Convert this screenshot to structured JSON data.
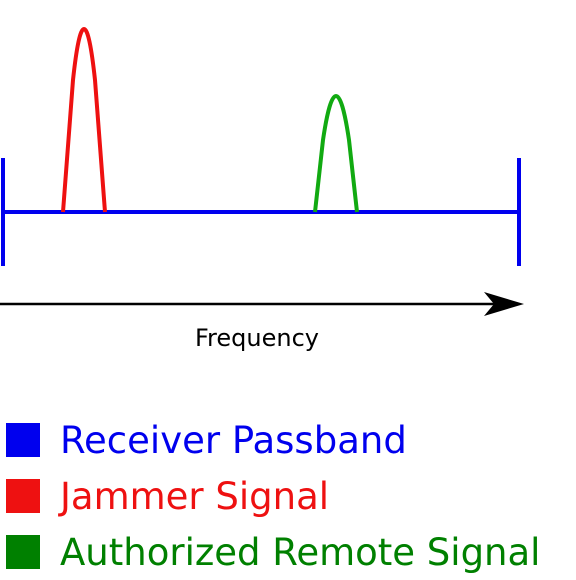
{
  "diagram": {
    "axis_label": "Frequency",
    "colors": {
      "passband": "#0000ee",
      "jammer": "#ee1111",
      "remote": "#11aa11",
      "arrow": "#000000"
    }
  },
  "legend": {
    "items": [
      {
        "label": "Receiver Passband",
        "color": "#0000ee"
      },
      {
        "label": "Jammer Signal",
        "color": "#ee1111"
      },
      {
        "label": "Authorized Remote Signal",
        "color": "#008000"
      }
    ]
  }
}
